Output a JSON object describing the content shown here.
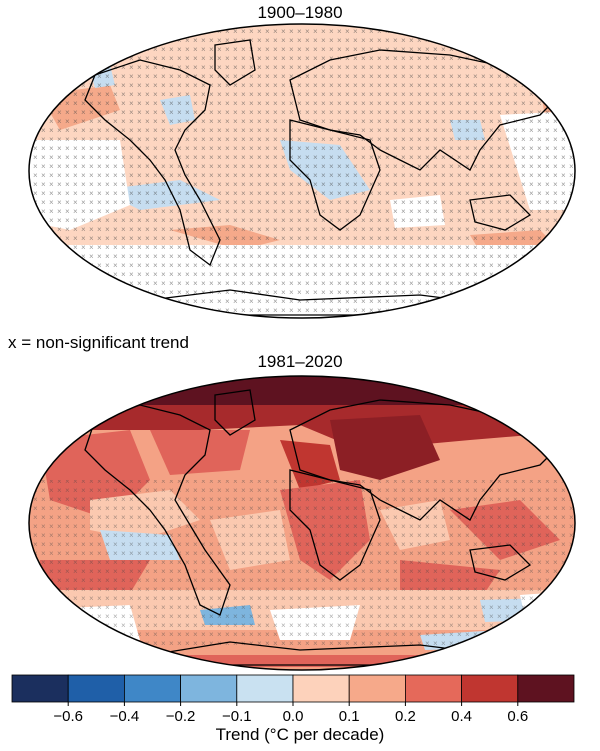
{
  "maps": [
    {
      "title": "1900–1980"
    },
    {
      "title": "1981–2020"
    }
  ],
  "significance_note": "x = non-significant trend",
  "colorbar": {
    "label": "Trend (°C per decade)",
    "colors": [
      "#1b2f5e",
      "#1f5fa8",
      "#3f87c7",
      "#7eb5de",
      "#c9e1f1",
      "#fdd2bb",
      "#f6a98a",
      "#e5695a",
      "#c03630",
      "#5e1220"
    ],
    "ticks": [
      "−0.6",
      "−0.4",
      "−0.2",
      "−0.1",
      "0.0",
      "0.1",
      "0.2",
      "0.4",
      "0.6"
    ]
  },
  "palette": {
    "land_outline": "#000000",
    "no_data": "#ffffff",
    "hatch": "#444444"
  }
}
